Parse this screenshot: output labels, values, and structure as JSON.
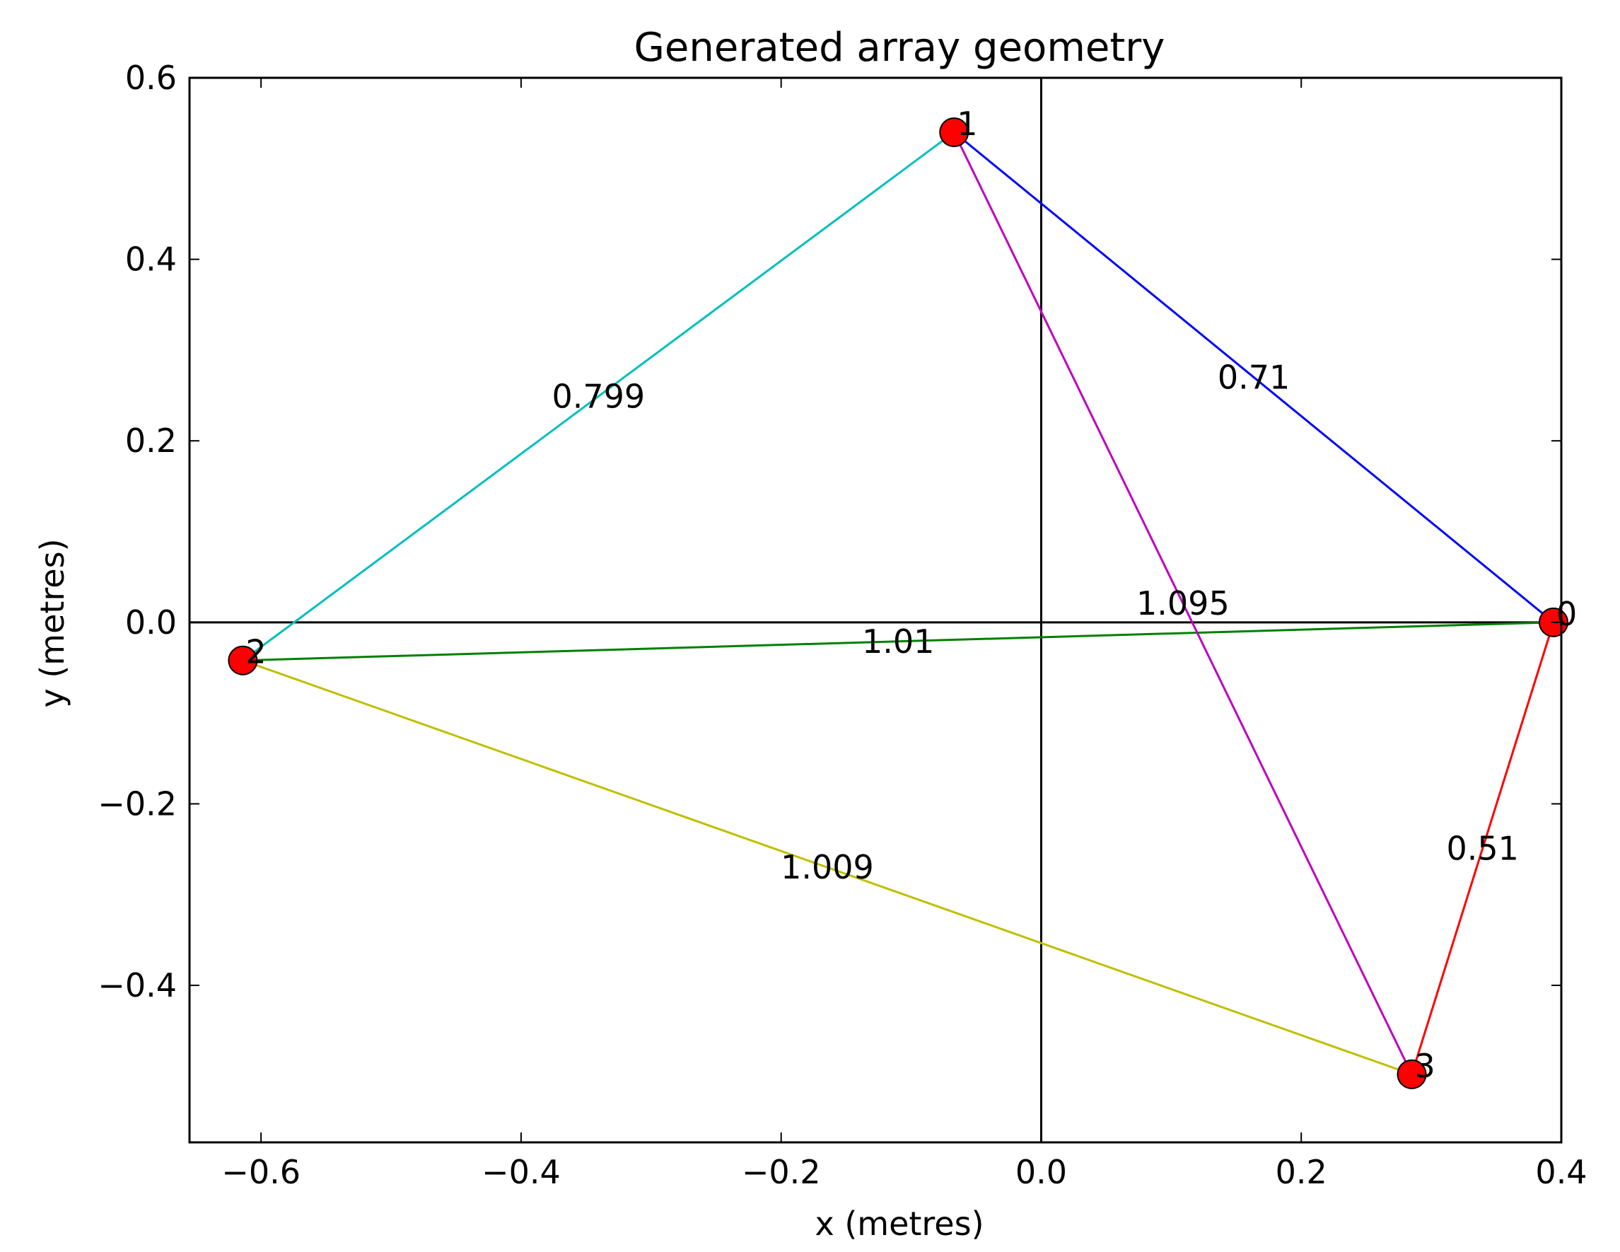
{
  "chart_data": {
    "type": "scatter",
    "title": "Generated array geometry",
    "xlabel": "x (metres)",
    "ylabel": "y (metres)",
    "xlim": [
      -0.655,
      0.4
    ],
    "ylim": [
      -0.573,
      0.6
    ],
    "grid": false,
    "zero_lines": true,
    "x_ticks": [
      -0.6,
      -0.4,
      -0.2,
      0.0,
      0.2,
      0.4
    ],
    "x_tick_labels": [
      "−0.6",
      "−0.4",
      "−0.2",
      "0.0",
      "0.2",
      "0.4"
    ],
    "y_ticks": [
      -0.4,
      -0.2,
      0.0,
      0.2,
      0.4,
      0.6
    ],
    "y_tick_labels": [
      "−0.4",
      "−0.2",
      "0.0",
      "0.2",
      "0.4",
      "0.6"
    ],
    "points": [
      {
        "label": "0",
        "x": 0.394,
        "y": 0.0
      },
      {
        "label": "1",
        "x": -0.067,
        "y": 0.54
      },
      {
        "label": "2",
        "x": -0.614,
        "y": -0.042
      },
      {
        "label": "3",
        "x": 0.285,
        "y": -0.498
      }
    ],
    "marker_color": "#ff0000",
    "edges": [
      {
        "from": 0,
        "to": 1,
        "length": "0.71",
        "color": "#0000ff"
      },
      {
        "from": 1,
        "to": 2,
        "length": "0.799",
        "color": "#00bfbf"
      },
      {
        "from": 0,
        "to": 2,
        "length": "1.01",
        "color": "#008000"
      },
      {
        "from": 2,
        "to": 3,
        "length": "1.009",
        "color": "#bfbf00"
      },
      {
        "from": 1,
        "to": 3,
        "length": "1.095",
        "color": "#bf00bf"
      },
      {
        "from": 0,
        "to": 3,
        "length": "0.51",
        "color": "#ff0000"
      }
    ]
  }
}
